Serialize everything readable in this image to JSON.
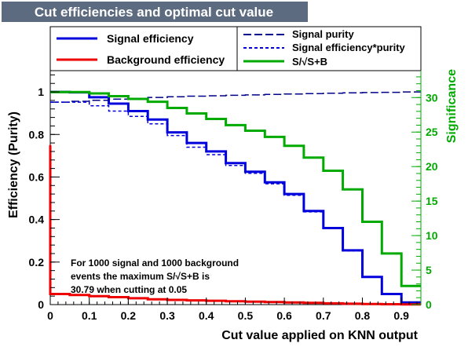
{
  "title": "Cut efficiencies and optimal cut value",
  "chart_data": {
    "type": "line",
    "xlabel": "Cut value applied on KNN output",
    "ylabel": "Efficiency (Purity)",
    "y2label": "Significance",
    "xlim": [
      0,
      0.95
    ],
    "ylim": [
      0,
      1.1
    ],
    "y2lim": [
      0,
      33.9
    ],
    "x_ticks": [
      "0",
      "0.1",
      "0.2",
      "0.3",
      "0.4",
      "0.5",
      "0.6",
      "0.7",
      "0.8",
      "0.9"
    ],
    "y_ticks": [
      "0",
      "0.2",
      "0.4",
      "0.6",
      "0.8",
      "1"
    ],
    "y2_ticks": [
      "0",
      "5",
      "10",
      "15",
      "20",
      "25",
      "30"
    ],
    "grid": false,
    "legend": {
      "position": "top",
      "entries": [
        {
          "label": "Signal efficiency",
          "color": "#0000dd",
          "style": "solid"
        },
        {
          "label": "Background efficiency",
          "color": "#ee0000",
          "style": "solid"
        },
        {
          "label": "Signal purity",
          "color": "#000088",
          "style": "long-dash"
        },
        {
          "label": "Signal efficiency*purity",
          "color": "#0000dd",
          "style": "short-dash"
        },
        {
          "label": "S/√S+B",
          "color": "#00aa00",
          "style": "solid"
        }
      ]
    },
    "annotation": [
      "For 1000 signal and 1000 background",
      "events the maximum S/√S+B is",
      "30.79 when cutting at  0.05"
    ],
    "bin_edges": [
      0,
      0.05,
      0.1,
      0.15,
      0.2,
      0.25,
      0.3,
      0.35,
      0.4,
      0.45,
      0.5,
      0.55,
      0.6,
      0.65,
      0.7,
      0.75,
      0.8,
      0.85,
      0.9,
      0.95
    ],
    "series": [
      {
        "name": "Signal efficiency",
        "axis": "left",
        "values": [
          1.0,
          0.998,
          0.975,
          0.945,
          0.91,
          0.87,
          0.81,
          0.76,
          0.72,
          0.665,
          0.625,
          0.575,
          0.52,
          0.44,
          0.36,
          0.255,
          0.13,
          0.05,
          0.01
        ]
      },
      {
        "name": "Background efficiency",
        "axis": "left",
        "values": [
          0.05,
          0.045,
          0.04,
          0.035,
          0.03,
          0.025,
          0.022,
          0.02,
          0.018,
          0.016,
          0.014,
          0.012,
          0.01,
          0.008,
          0.006,
          0.004,
          0.003,
          0.002,
          0.001
        ]
      },
      {
        "name": "Signal purity",
        "axis": "left",
        "values": [
          0.952,
          0.956,
          0.961,
          0.966,
          0.97,
          0.974,
          0.977,
          0.98,
          0.982,
          0.984,
          0.986,
          0.988,
          0.99,
          0.992,
          0.994,
          0.996,
          0.997,
          0.998,
          1.0
        ]
      },
      {
        "name": "Signal efficiency*purity",
        "axis": "left",
        "values": [
          0.952,
          0.952,
          0.935,
          0.91,
          0.885,
          0.85,
          0.795,
          0.74,
          0.705,
          0.654,
          0.617,
          0.568,
          0.514,
          0.436,
          0.357,
          0.253,
          0.13,
          0.05,
          0.01
        ]
      },
      {
        "name": "S/√S+B",
        "axis": "right",
        "values": [
          30.79,
          30.79,
          30.6,
          30.2,
          29.8,
          29.4,
          28.5,
          27.7,
          26.9,
          26.0,
          25.2,
          24.3,
          23.0,
          21.3,
          19.4,
          16.7,
          12.0,
          7.4,
          2.7
        ]
      }
    ]
  }
}
